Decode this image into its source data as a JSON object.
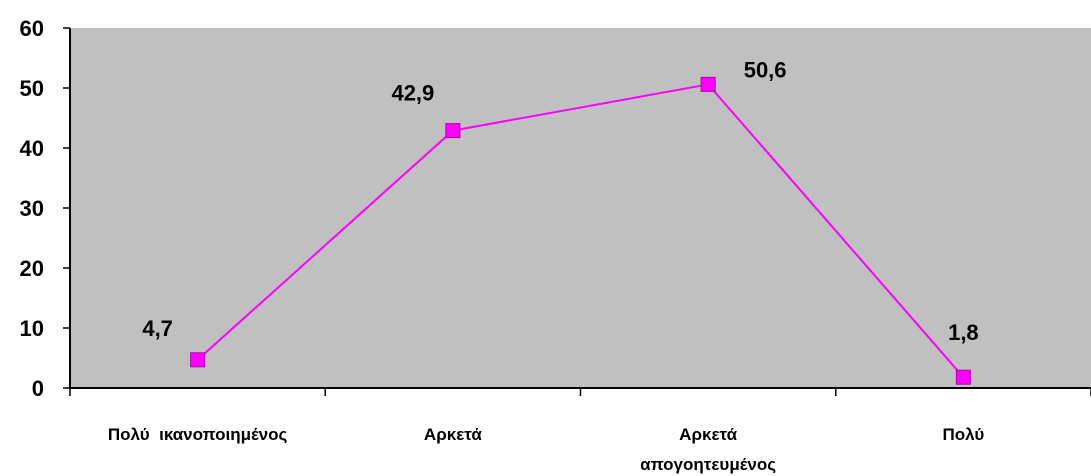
{
  "chart_data": {
    "type": "line",
    "categories": [
      [
        "Πολύ  ικανοποιημένος"
      ],
      [
        "Αρκετά"
      ],
      [
        "Αρκετά",
        "απογοητευμένος"
      ],
      [
        "Πολύ"
      ]
    ],
    "series": [
      {
        "values": [
          4.7,
          42.9,
          50.6,
          1.8
        ],
        "data_labels": [
          "4,7",
          "42,9",
          "50,6",
          "1,8"
        ],
        "color": "#ff00ff",
        "marker": "square"
      }
    ],
    "y_ticks": [
      "0",
      "10",
      "20",
      "30",
      "40",
      "50",
      "60"
    ],
    "ylim": [
      0,
      60
    ],
    "plot_background": "#c0c0c0",
    "grid": false,
    "legend": "none"
  }
}
